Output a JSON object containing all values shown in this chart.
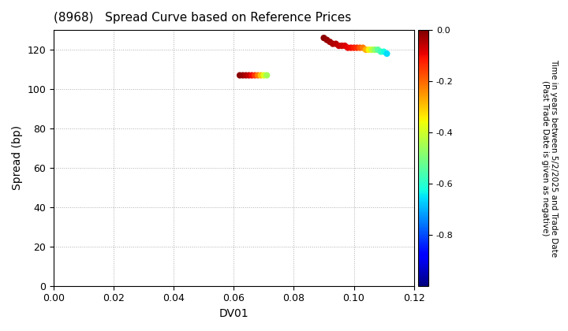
{
  "title": "(8968)   Spread Curve based on Reference Prices",
  "xlabel": "DV01",
  "ylabel": "Spread (bp)",
  "xlim": [
    0.0,
    0.12
  ],
  "ylim": [
    0,
    130
  ],
  "xticks": [
    0.0,
    0.02,
    0.04,
    0.06,
    0.08,
    0.1,
    0.12
  ],
  "yticks": [
    0,
    20,
    40,
    60,
    80,
    100,
    120
  ],
  "colorbar_label": "Time in years between 5/2/2025 and Trade Date\n(Past Trade Date is given as negative)",
  "colorbar_vmin": -1.0,
  "colorbar_vmax": 0.0,
  "colorbar_ticks": [
    0.0,
    -0.2,
    -0.4,
    -0.6,
    -0.8
  ],
  "cluster1": {
    "dv01": [
      0.062,
      0.063,
      0.064,
      0.065,
      0.066,
      0.067,
      0.068,
      0.069,
      0.07,
      0.071
    ],
    "spread": [
      107,
      107,
      107,
      107,
      107,
      107,
      107,
      107,
      107,
      107
    ],
    "time": [
      -0.01,
      -0.02,
      -0.04,
      -0.06,
      -0.1,
      -0.15,
      -0.22,
      -0.3,
      -0.38,
      -0.45
    ]
  },
  "cluster2": {
    "dv01": [
      0.09,
      0.091,
      0.092,
      0.093,
      0.094,
      0.095,
      0.096,
      0.097,
      0.098,
      0.099,
      0.1,
      0.101,
      0.102,
      0.103,
      0.104,
      0.105,
      0.106,
      0.107,
      0.108,
      0.109,
      0.11,
      0.111
    ],
    "spread": [
      126,
      125,
      124,
      123,
      123,
      122,
      122,
      122,
      121,
      121,
      121,
      121,
      121,
      121,
      120,
      120,
      120,
      120,
      120,
      119,
      119,
      118
    ],
    "time": [
      -0.01,
      -0.02,
      -0.03,
      -0.04,
      -0.05,
      -0.06,
      -0.07,
      -0.08,
      -0.09,
      -0.1,
      -0.12,
      -0.14,
      -0.18,
      -0.22,
      -0.28,
      -0.35,
      -0.42,
      -0.48,
      -0.54,
      -0.58,
      -0.62,
      -0.66
    ]
  },
  "marker_size": 35,
  "background_color": "#ffffff",
  "grid_color": "#999999",
  "cmap": "jet"
}
